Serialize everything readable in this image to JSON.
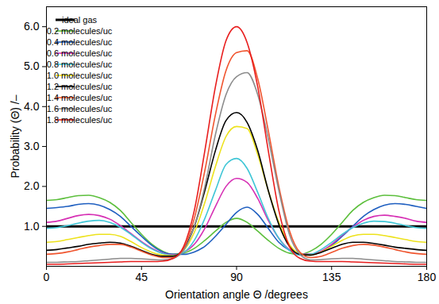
{
  "chart_data": {
    "type": "line",
    "x_label": "Orientation angle Θ /degrees",
    "y_label": "Probability (Θ) /–",
    "xlim": [
      0,
      180
    ],
    "xticks": [
      0,
      45,
      90,
      135,
      180
    ],
    "ylim": [
      0,
      6.5
    ],
    "yticks": [
      1,
      2,
      3,
      4,
      5,
      6
    ],
    "grid": false,
    "legend": "top-left",
    "x": [
      0,
      5,
      10,
      15,
      20,
      25,
      30,
      35,
      40,
      45,
      50,
      55,
      60,
      65,
      70,
      75,
      80,
      85,
      90,
      95,
      100,
      105,
      110,
      115,
      120,
      125,
      130,
      135,
      140,
      145,
      150,
      155,
      160,
      165,
      170,
      175,
      180
    ],
    "series": [
      {
        "name": "ideal gas",
        "color": "#000000",
        "values": [
          1,
          1,
          1,
          1,
          1,
          1,
          1,
          1,
          1,
          1,
          1,
          1,
          1,
          1,
          1,
          1,
          1,
          1,
          1,
          1,
          1,
          1,
          1,
          1,
          1,
          1,
          1,
          1,
          1,
          1,
          1,
          1,
          1,
          1,
          1,
          1,
          1
        ]
      },
      {
        "name": "0.2 molecules/uc",
        "color": "#5cbf3c",
        "values": [
          1.65,
          1.67,
          1.72,
          1.77,
          1.78,
          1.72,
          1.6,
          1.4,
          1.1,
          0.8,
          0.55,
          0.38,
          0.3,
          0.33,
          0.45,
          0.65,
          0.88,
          1.1,
          1.2,
          1.1,
          0.88,
          0.65,
          0.45,
          0.33,
          0.3,
          0.38,
          0.55,
          0.8,
          1.1,
          1.4,
          1.6,
          1.72,
          1.78,
          1.77,
          1.72,
          1.67,
          1.65
        ]
      },
      {
        "name": "0.4 molecules/uc",
        "color": "#1f5fc0",
        "values": [
          1.45,
          1.47,
          1.5,
          1.55,
          1.57,
          1.53,
          1.42,
          1.25,
          1.0,
          0.75,
          0.52,
          0.36,
          0.3,
          0.3,
          0.36,
          0.5,
          0.75,
          1.05,
          1.35,
          1.48,
          1.3,
          0.95,
          0.6,
          0.4,
          0.3,
          0.3,
          0.36,
          0.52,
          0.75,
          1.0,
          1.25,
          1.42,
          1.53,
          1.57,
          1.55,
          1.5,
          1.45
        ]
      },
      {
        "name": "0.6 molecules/uc",
        "color": "#d62fb4",
        "values": [
          1.1,
          1.13,
          1.2,
          1.27,
          1.3,
          1.27,
          1.18,
          1.02,
          0.82,
          0.62,
          0.45,
          0.33,
          0.28,
          0.35,
          0.55,
          0.95,
          1.5,
          2.0,
          2.2,
          2.1,
          1.7,
          1.15,
          0.7,
          0.42,
          0.3,
          0.3,
          0.38,
          0.55,
          0.78,
          0.98,
          1.15,
          1.25,
          1.28,
          1.25,
          1.2,
          1.13,
          1.1
        ]
      },
      {
        "name": "0.8 molecules/uc",
        "color": "#3fc6d6",
        "values": [
          0.95,
          0.97,
          1.02,
          1.08,
          1.13,
          1.15,
          1.1,
          0.98,
          0.8,
          0.6,
          0.43,
          0.32,
          0.27,
          0.35,
          0.65,
          1.2,
          1.9,
          2.55,
          2.7,
          2.45,
          1.85,
          1.2,
          0.7,
          0.4,
          0.28,
          0.3,
          0.42,
          0.6,
          0.8,
          0.97,
          1.08,
          1.13,
          1.12,
          1.08,
          1.02,
          0.97,
          0.95
        ]
      },
      {
        "name": "1.0 molecules/uc",
        "color": "#ede21c",
        "values": [
          0.6,
          0.62,
          0.67,
          0.72,
          0.77,
          0.8,
          0.8,
          0.75,
          0.62,
          0.47,
          0.35,
          0.28,
          0.26,
          0.4,
          0.85,
          1.6,
          2.5,
          3.25,
          3.5,
          3.45,
          2.8,
          1.9,
          1.1,
          0.55,
          0.32,
          0.28,
          0.36,
          0.5,
          0.65,
          0.76,
          0.8,
          0.8,
          0.77,
          0.72,
          0.67,
          0.62,
          0.6
        ]
      },
      {
        "name": "1.2 molecules/uc",
        "color": "#000000",
        "values": [
          0.4,
          0.42,
          0.46,
          0.5,
          0.55,
          0.58,
          0.6,
          0.58,
          0.5,
          0.4,
          0.3,
          0.25,
          0.25,
          0.45,
          1.0,
          1.9,
          2.9,
          3.65,
          3.85,
          3.6,
          2.9,
          1.9,
          1.05,
          0.5,
          0.3,
          0.28,
          0.35,
          0.45,
          0.55,
          0.6,
          0.6,
          0.57,
          0.53,
          0.48,
          0.45,
          0.42,
          0.4
        ]
      },
      {
        "name": "1.4 molecules/uc",
        "color": "#f0552f",
        "values": [
          0.3,
          0.32,
          0.36,
          0.42,
          0.48,
          0.52,
          0.55,
          0.55,
          0.48,
          0.38,
          0.28,
          0.22,
          0.22,
          0.45,
          1.2,
          2.4,
          3.8,
          4.9,
          5.35,
          5.4,
          4.7,
          3.4,
          2.0,
          0.9,
          0.35,
          0.22,
          0.25,
          0.35,
          0.45,
          0.52,
          0.55,
          0.53,
          0.48,
          0.42,
          0.36,
          0.32,
          0.3
        ]
      },
      {
        "name": "1.6 molecules/uc",
        "color": "#8c8c8c",
        "values": [
          0.1,
          0.1,
          0.11,
          0.12,
          0.14,
          0.16,
          0.18,
          0.2,
          0.2,
          0.19,
          0.17,
          0.16,
          0.2,
          0.4,
          1.0,
          2.0,
          3.3,
          4.3,
          4.75,
          4.85,
          4.3,
          3.2,
          1.9,
          0.8,
          0.3,
          0.16,
          0.17,
          0.19,
          0.2,
          0.2,
          0.18,
          0.16,
          0.14,
          0.12,
          0.11,
          0.1,
          0.1
        ]
      },
      {
        "name": "1.8 molecules/uc",
        "color": "#e81e1e",
        "values": [
          0.05,
          0.05,
          0.06,
          0.07,
          0.08,
          0.09,
          0.1,
          0.11,
          0.12,
          0.12,
          0.12,
          0.13,
          0.2,
          0.5,
          1.4,
          2.9,
          4.5,
          5.65,
          6.0,
          5.6,
          4.5,
          2.9,
          1.4,
          0.5,
          0.2,
          0.13,
          0.12,
          0.12,
          0.12,
          0.11,
          0.1,
          0.09,
          0.08,
          0.07,
          0.06,
          0.05,
          0.05
        ]
      }
    ]
  }
}
